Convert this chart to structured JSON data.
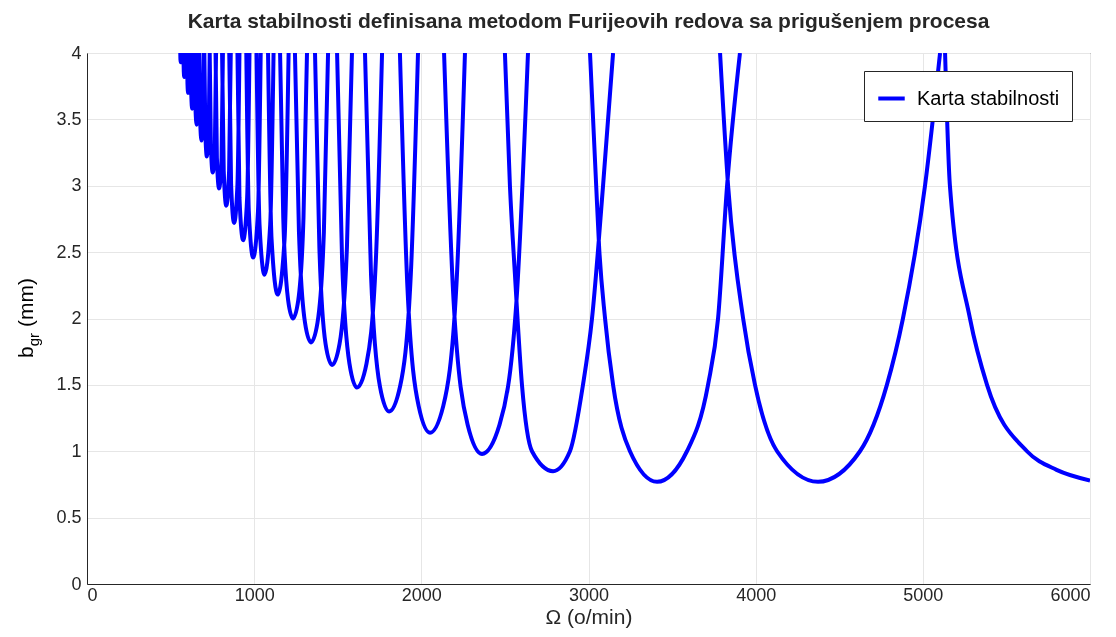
{
  "chart_data": {
    "type": "line",
    "title": "Karta stabilnosti definisana metodom Furijeovih redova sa prigušenjem procesa",
    "xlabel": "Ω (o/min)",
    "ylabel": "b$_{gr}$  (mm)",
    "series": [
      {
        "name": "Karta stabilnosti",
        "color": "#0000ff",
        "x": [
          558,
          559,
          561,
          563,
          564,
          null,
          577,
          579,
          582,
          585,
          587,
          null,
          598,
          601,
          605,
          610,
          612,
          null,
          620,
          624,
          629,
          635,
          639,
          null,
          646,
          649,
          656,
          663,
          668,
          null,
          672,
          677,
          685,
          694,
          699,
          null,
          702,
          708,
          717,
          728,
          734,
          null,
          734,
          741,
          752,
          765,
          772,
          null,
          769,
          777,
          790,
          805,
          813,
          null,
          808,
          818,
          833,
          850,
          860,
          null,
          851,
          862,
          880,
          900,
          912,
          null,
          900,
          912,
          934,
          958,
          972,
          null,
          953,
          968,
          994,
          1023,
          1039,
          null,
          1014,
          1032,
          1062,
          1096,
          1116,
          null,
          1083,
          1104,
          1141,
          1182,
          1206,
          null,
          1155,
          1174,
          1203,
          1232,
          1264,
          1295,
          1316,
          null,
          1244,
          1268,
          1304,
          1340,
          1379,
          1417,
          1442,
          null,
          1364,
          1390,
          1427,
          1466,
          1511,
          1555,
          1585,
          null,
          1496,
          1526,
          1570,
          1615,
          1672,
          1728,
          1765,
          null,
          1663,
          1699,
          1752,
          1807,
          1873,
          1937,
          1980,
          null,
          1872,
          1917,
          1984,
          2052,
          2131,
          2209,
          2261,
          null,
          2136,
          2193,
          2277,
          2363,
          2468,
          2569,
          2638,
          null,
          2500,
          2530,
          2560,
          2602,
          2662,
          2788,
          2889,
          2967,
          3021,
          3087,
          3147,
          null,
          3009,
          3046,
          3063,
          3099,
          3147,
          3248,
          3410,
          3589,
          3715,
          3775,
          3829,
          3906,
          null,
          3787,
          3835,
          3925,
          3996,
          4128,
          4373,
          4624,
          4785,
          4881,
          5013,
          5103,
          null,
          5133,
          5162,
          5282,
          5384,
          5623,
          5800,
          6000
        ],
        "values": [
          4,
          3.95,
          3.93,
          3.95,
          4,
          null,
          4,
          3.86,
          3.82,
          3.86,
          4,
          null,
          4,
          3.77,
          3.7,
          3.77,
          4,
          null,
          4,
          3.68,
          3.58,
          3.68,
          4,
          null,
          4,
          3.58,
          3.46,
          3.58,
          4,
          null,
          4,
          3.49,
          3.34,
          3.49,
          4,
          null,
          4,
          3.4,
          3.22,
          3.4,
          4,
          null,
          4,
          3.31,
          3.1,
          3.31,
          4,
          null,
          4,
          3.21,
          2.98,
          3.21,
          4,
          null,
          4,
          3.11,
          2.85,
          3.11,
          4,
          null,
          4,
          3.01,
          2.72,
          3.01,
          4,
          null,
          4,
          2.91,
          2.59,
          2.91,
          4,
          null,
          4,
          2.81,
          2.46,
          2.81,
          4,
          null,
          4,
          2.71,
          2.33,
          2.71,
          4,
          null,
          4,
          2.6,
          2.18,
          2.6,
          4,
          null,
          4,
          2.76,
          2.14,
          2.0,
          2.14,
          2.76,
          4,
          null,
          4,
          2.65,
          1.97,
          1.82,
          1.97,
          2.65,
          4,
          null,
          4,
          2.54,
          1.81,
          1.65,
          1.81,
          2.54,
          4,
          null,
          4,
          2.44,
          1.66,
          1.48,
          1.66,
          2.44,
          4,
          null,
          4,
          2.33,
          1.49,
          1.3,
          1.49,
          2.33,
          4,
          null,
          4,
          2.23,
          1.34,
          1.14,
          1.34,
          2.23,
          4,
          null,
          4,
          2.13,
          1.2,
          0.98,
          1.2,
          2.13,
          4,
          null,
          4,
          3,
          2.33,
          1.5,
          1,
          0.85,
          1,
          1.5,
          2,
          3,
          4,
          null,
          4,
          3,
          2.55,
          2,
          1.5,
          1,
          0.77,
          1,
          1.5,
          2,
          3,
          4,
          null,
          4,
          3,
          2,
          1.5,
          1,
          0.77,
          1,
          1.5,
          2,
          3,
          4,
          null,
          4,
          3,
          2,
          1.5,
          1,
          0.86,
          0.78
        ]
      }
    ],
    "xlim": [
      0,
      6000
    ],
    "xticks": [
      0,
      1000,
      2000,
      3000,
      4000,
      5000,
      6000
    ],
    "ylim": [
      0,
      4
    ],
    "yticks": [
      0,
      0.5,
      1,
      1.5,
      2,
      2.5,
      3,
      3.5,
      4
    ],
    "grid": true,
    "legend": "top right",
    "line_style": "solid",
    "marker": "none"
  }
}
